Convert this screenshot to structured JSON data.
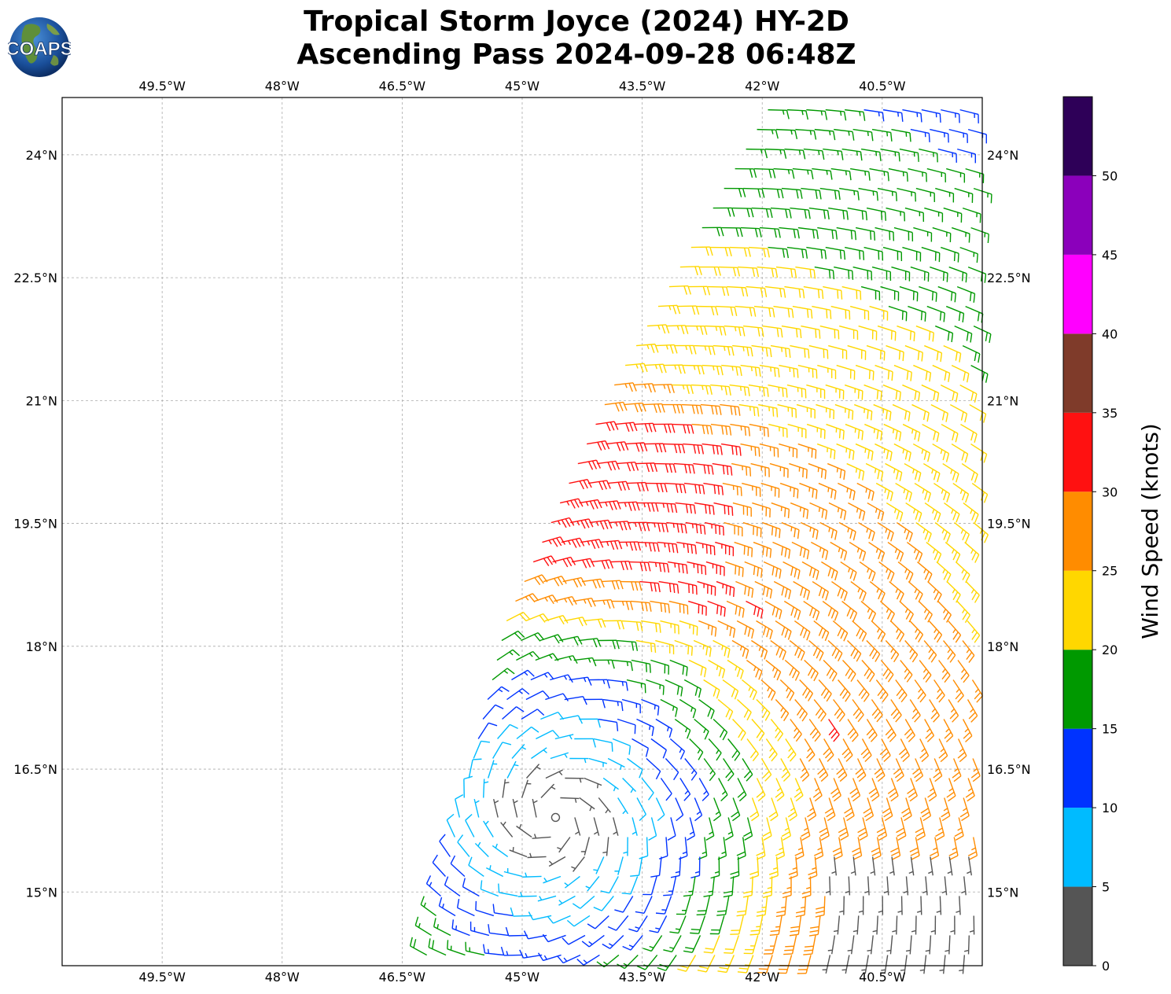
{
  "title": {
    "line1": "Tropical Storm Joyce (2024) HY-2D",
    "line2": "Ascending Pass 2024-09-28 06:48Z"
  },
  "logo": {
    "text": "COAPS",
    "icon": "globe-logo-icon"
  },
  "map": {
    "lon_range": [
      -50.75,
      -39.25
    ],
    "lat_range": [
      14.1,
      24.7
    ],
    "lon_ticks": [
      {
        "value": -49.5,
        "label": "49.5°W"
      },
      {
        "value": -48.0,
        "label": "48°W"
      },
      {
        "value": -46.5,
        "label": "46.5°W"
      },
      {
        "value": -45.0,
        "label": "45°W"
      },
      {
        "value": -43.5,
        "label": "43.5°W"
      },
      {
        "value": -42.0,
        "label": "42°W"
      },
      {
        "value": -40.5,
        "label": "40.5°W"
      }
    ],
    "lat_ticks": [
      {
        "value": 24.0,
        "label": "24°N"
      },
      {
        "value": 22.5,
        "label": "22.5°N"
      },
      {
        "value": 21.0,
        "label": "21°N"
      },
      {
        "value": 19.5,
        "label": "19.5°N"
      },
      {
        "value": 18.0,
        "label": "18°N"
      },
      {
        "value": 16.5,
        "label": "16.5°N"
      },
      {
        "value": 15.0,
        "label": "15°N"
      }
    ],
    "gridlines": true,
    "center": {
      "lon": -44.6,
      "lat": 15.9
    },
    "swath": {
      "left_edge": [
        [
          -41.9,
          24.6
        ],
        [
          -43.9,
          21.1
        ],
        [
          -45.2,
          18.3
        ],
        [
          -46.2,
          14.2
        ]
      ]
    }
  },
  "colorbar": {
    "label": "Wind Speed (knots)",
    "ticks": [
      0,
      5,
      10,
      15,
      20,
      25,
      30,
      35,
      40,
      45,
      50
    ],
    "bins": [
      {
        "min": 0,
        "max": 5,
        "color": "#555555"
      },
      {
        "min": 5,
        "max": 10,
        "color": "#00bbff"
      },
      {
        "min": 10,
        "max": 15,
        "color": "#0033ff"
      },
      {
        "min": 15,
        "max": 20,
        "color": "#009900"
      },
      {
        "min": 20,
        "max": 25,
        "color": "#ffd700"
      },
      {
        "min": 25,
        "max": 30,
        "color": "#ff8c00"
      },
      {
        "min": 30,
        "max": 35,
        "color": "#ff1111"
      },
      {
        "min": 35,
        "max": 40,
        "color": "#7f3b2a"
      },
      {
        "min": 40,
        "max": 45,
        "color": "#ff00ff"
      },
      {
        "min": 45,
        "max": 50,
        "color": "#8b00bb"
      },
      {
        "min": 50,
        "max": 55,
        "color": "#2e0058"
      }
    ]
  }
}
